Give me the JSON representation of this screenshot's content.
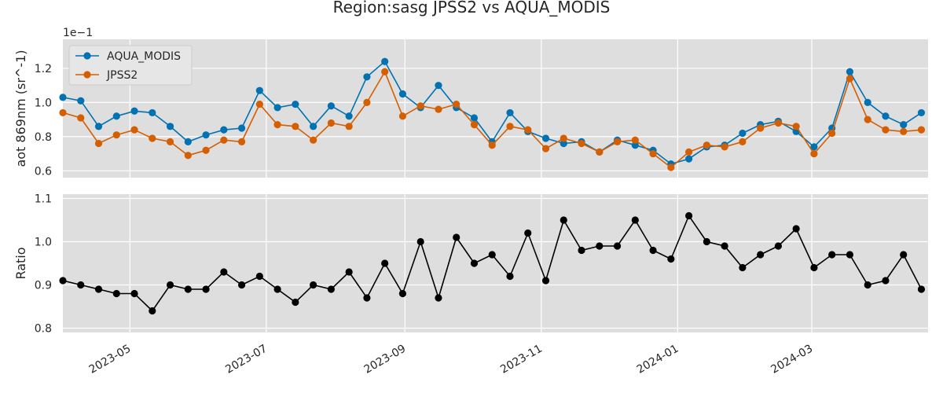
{
  "chart_data": {
    "type": "line",
    "title": "Region:sasg JPSS2 vs AQUA_MODIS",
    "x": [
      "2023-04-01",
      "2023-04-09",
      "2023-04-17",
      "2023-04-25",
      "2023-05-03",
      "2023-05-11",
      "2023-05-19",
      "2023-05-27",
      "2023-06-04",
      "2023-06-12",
      "2023-06-20",
      "2023-06-28",
      "2023-07-06",
      "2023-07-14",
      "2023-07-22",
      "2023-07-30",
      "2023-08-07",
      "2023-08-15",
      "2023-08-23",
      "2023-08-31",
      "2023-09-08",
      "2023-09-16",
      "2023-09-24",
      "2023-10-02",
      "2023-10-10",
      "2023-10-18",
      "2023-10-26",
      "2023-11-03",
      "2023-11-11",
      "2023-11-19",
      "2023-11-27",
      "2023-12-05",
      "2023-12-13",
      "2023-12-21",
      "2023-12-29",
      "2024-01-06",
      "2024-01-14",
      "2024-01-22",
      "2024-01-30",
      "2024-02-07",
      "2024-02-15",
      "2024-02-23",
      "2024-03-02",
      "2024-03-10",
      "2024-03-18",
      "2024-03-26",
      "2024-04-03",
      "2024-04-11",
      "2024-04-19"
    ],
    "top_panel": {
      "ylabel": "aot 869nm (sr^-1)",
      "offset_text": "1e−1",
      "ylim": [
        0.56,
        1.37
      ],
      "yticks": [
        0.6,
        0.8,
        1.0,
        1.2
      ],
      "ytick_labels": [
        "0.6",
        "0.8",
        "1.0",
        "1.2"
      ],
      "legend_position": "upper-left",
      "series": [
        {
          "name": "AQUA_MODIS",
          "color": "#0072b2",
          "values": [
            1.03,
            1.01,
            0.86,
            0.92,
            0.95,
            0.94,
            0.86,
            0.77,
            0.81,
            0.84,
            0.85,
            1.07,
            0.97,
            0.99,
            0.86,
            0.98,
            0.92,
            1.15,
            1.24,
            1.05,
            0.97,
            1.1,
            0.97,
            0.91,
            0.77,
            0.94,
            0.83,
            0.79,
            0.76,
            0.77,
            0.71,
            0.78,
            0.75,
            0.72,
            0.64,
            0.67,
            0.74,
            0.75,
            0.82,
            0.87,
            0.89,
            0.83,
            0.74,
            0.85,
            1.18,
            1.0,
            0.92,
            0.87,
            0.94
          ]
        },
        {
          "name": "JPSS2",
          "color": "#d55e00",
          "values": [
            0.94,
            0.91,
            0.76,
            0.81,
            0.84,
            0.79,
            0.77,
            0.69,
            0.72,
            0.78,
            0.77,
            0.99,
            0.87,
            0.86,
            0.78,
            0.88,
            0.86,
            1.0,
            1.18,
            0.92,
            0.98,
            0.96,
            0.99,
            0.87,
            0.75,
            0.86,
            0.84,
            0.73,
            0.79,
            0.76,
            0.71,
            0.77,
            0.78,
            0.7,
            0.62,
            0.71,
            0.75,
            0.74,
            0.77,
            0.85,
            0.88,
            0.86,
            0.7,
            0.82,
            1.14,
            0.9,
            0.84,
            0.83,
            0.84
          ]
        }
      ]
    },
    "bottom_panel": {
      "ylabel": "Ratio",
      "ylim": [
        0.79,
        1.11
      ],
      "yticks": [
        0.8,
        0.9,
        1.0,
        1.1
      ],
      "ytick_labels": [
        "0.8",
        "0.9",
        "1.0",
        "1.1"
      ],
      "series": [
        {
          "name": "",
          "color": "#000000",
          "values": [
            0.91,
            0.9,
            0.89,
            0.88,
            0.88,
            0.84,
            0.9,
            0.89,
            0.89,
            0.93,
            0.9,
            0.92,
            0.89,
            0.86,
            0.9,
            0.89,
            0.93,
            0.87,
            0.95,
            0.88,
            1.0,
            0.87,
            1.01,
            0.95,
            0.97,
            0.92,
            1.02,
            0.91,
            1.05,
            0.98,
            0.99,
            0.99,
            1.05,
            0.98,
            0.96,
            1.06,
            1.0,
            0.99,
            0.94,
            0.97,
            0.99,
            1.03,
            0.94,
            0.97,
            0.97,
            0.9,
            0.91,
            0.97,
            0.89
          ]
        }
      ]
    },
    "xticks": [
      "2023-05-01",
      "2023-07-01",
      "2023-09-01",
      "2023-11-01",
      "2024-01-01",
      "2024-03-01"
    ],
    "xtick_labels": [
      "2023-05",
      "2023-07",
      "2023-09",
      "2023-11",
      "2024-01",
      "2024-03"
    ],
    "xlim": [
      "2023-04-01",
      "2024-04-22"
    ],
    "grid": true,
    "background": "#dedede"
  }
}
